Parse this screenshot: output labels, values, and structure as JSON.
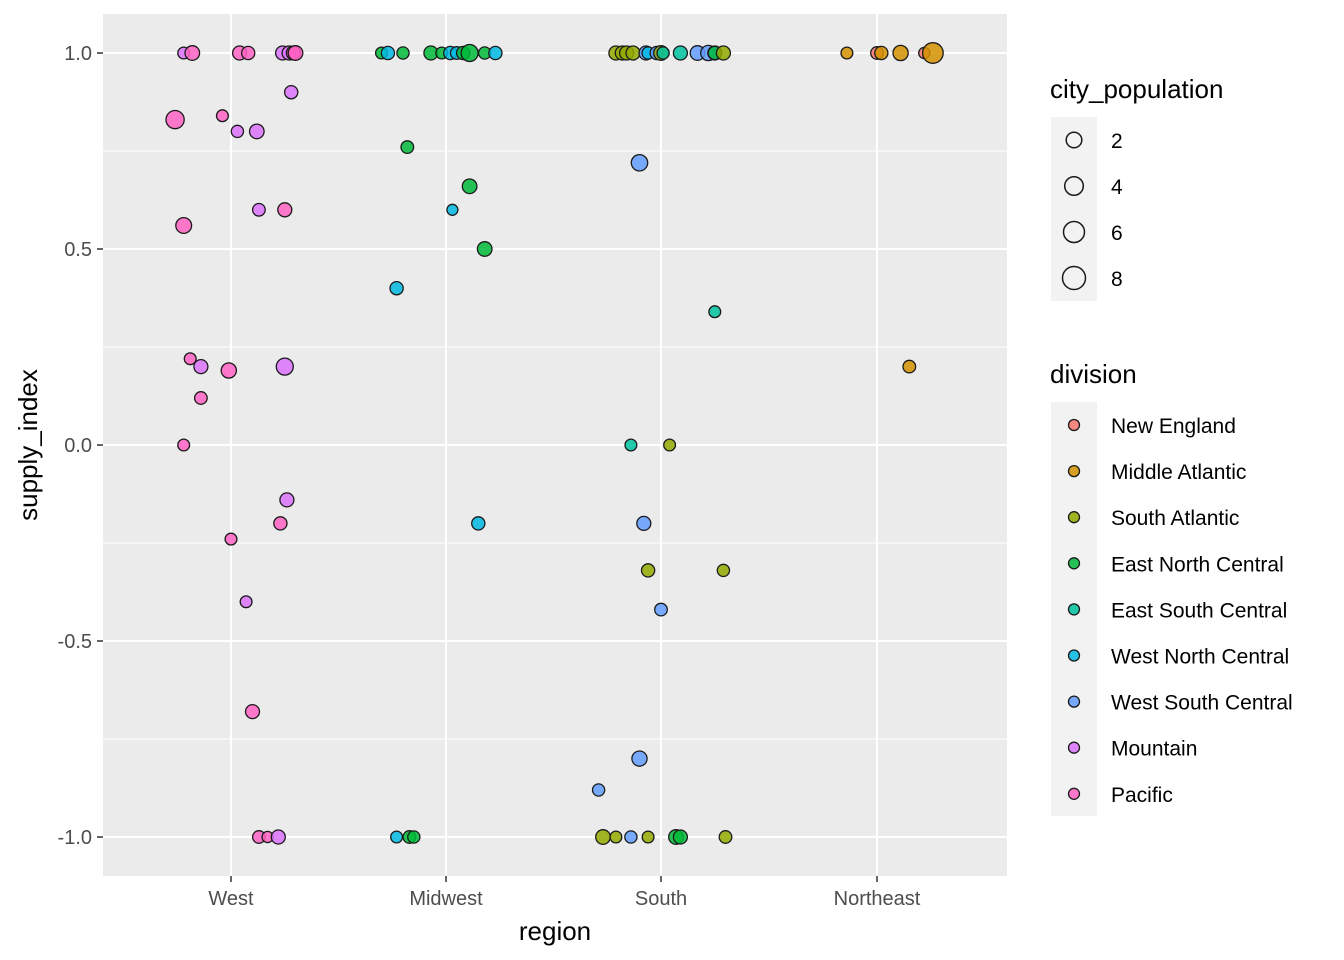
{
  "chart_data": {
    "type": "scatter",
    "title": "",
    "xlabel": "region",
    "ylabel": "supply_index",
    "categories": [
      "West",
      "Midwest",
      "South",
      "Northeast"
    ],
    "ylim": [
      -1.1,
      1.1
    ],
    "yticks": [
      1.0,
      0.5,
      0.0,
      -0.5,
      -1.0
    ],
    "ytick_labels": [
      "1.0",
      "0.5",
      "0.0",
      "-0.5",
      "-1.0"
    ],
    "grid": true,
    "legend_position": "right",
    "size_legend": {
      "title": "city_population",
      "values": [
        2,
        4,
        6,
        8
      ],
      "labels": [
        "2",
        "4",
        "6",
        "8"
      ]
    },
    "color_legend": {
      "title": "division",
      "items": [
        {
          "name": "New England",
          "color": "#F8766D"
        },
        {
          "name": "Middle Atlantic",
          "color": "#D39200"
        },
        {
          "name": "South Atlantic",
          "color": "#93AA00"
        },
        {
          "name": "East North Central",
          "color": "#00BA38"
        },
        {
          "name": "East South Central",
          "color": "#00C19F"
        },
        {
          "name": "West North Central",
          "color": "#00B9E3"
        },
        {
          "name": "West South Central",
          "color": "#619CFF"
        },
        {
          "name": "Mountain",
          "color": "#DB72FB"
        },
        {
          "name": "Pacific",
          "color": "#FF61C3"
        }
      ]
    },
    "points": [
      {
        "region": "West",
        "jitter": -0.22,
        "y": 1.0,
        "size": 0.8,
        "division": "Mountain"
      },
      {
        "region": "West",
        "jitter": -0.18,
        "y": 1.0,
        "size": 2.5,
        "division": "Pacific"
      },
      {
        "region": "West",
        "jitter": 0.04,
        "y": 1.0,
        "size": 2.0,
        "division": "Pacific"
      },
      {
        "region": "West",
        "jitter": 0.08,
        "y": 1.0,
        "size": 1.5,
        "division": "Pacific"
      },
      {
        "region": "West",
        "jitter": 0.24,
        "y": 1.0,
        "size": 2.0,
        "division": "Mountain"
      },
      {
        "region": "West",
        "jitter": 0.27,
        "y": 1.0,
        "size": 2.0,
        "division": "Mountain"
      },
      {
        "region": "West",
        "jitter": 0.29,
        "y": 1.0,
        "size": 2.0,
        "division": "Pacific"
      },
      {
        "region": "West",
        "jitter": 0.3,
        "y": 1.0,
        "size": 2.5,
        "division": "Pacific"
      },
      {
        "region": "West",
        "jitter": -0.26,
        "y": 0.83,
        "size": 6.0,
        "division": "Pacific"
      },
      {
        "region": "West",
        "jitter": -0.04,
        "y": 0.84,
        "size": 0.8,
        "division": "Pacific"
      },
      {
        "region": "West",
        "jitter": 0.03,
        "y": 0.8,
        "size": 1.0,
        "division": "Mountain"
      },
      {
        "region": "West",
        "jitter": 0.12,
        "y": 0.8,
        "size": 2.5,
        "division": "Mountain"
      },
      {
        "region": "West",
        "jitter": 0.28,
        "y": 0.9,
        "size": 1.5,
        "division": "Mountain"
      },
      {
        "region": "West",
        "jitter": -0.22,
        "y": 0.56,
        "size": 3.5,
        "division": "Pacific"
      },
      {
        "region": "West",
        "jitter": 0.13,
        "y": 0.6,
        "size": 1.2,
        "division": "Mountain"
      },
      {
        "region": "West",
        "jitter": 0.25,
        "y": 0.6,
        "size": 2.0,
        "division": "Pacific"
      },
      {
        "region": "West",
        "jitter": -0.19,
        "y": 0.22,
        "size": 0.8,
        "division": "Pacific"
      },
      {
        "region": "West",
        "jitter": -0.14,
        "y": 0.2,
        "size": 2.0,
        "division": "Mountain"
      },
      {
        "region": "West",
        "jitter": -0.01,
        "y": 0.19,
        "size": 3.0,
        "division": "Pacific"
      },
      {
        "region": "West",
        "jitter": 0.25,
        "y": 0.2,
        "size": 4.5,
        "division": "Mountain"
      },
      {
        "region": "West",
        "jitter": -0.14,
        "y": 0.12,
        "size": 1.2,
        "division": "Pacific"
      },
      {
        "region": "West",
        "jitter": -0.22,
        "y": 0.0,
        "size": 0.8,
        "division": "Pacific"
      },
      {
        "region": "West",
        "jitter": 0.26,
        "y": -0.14,
        "size": 2.0,
        "division": "Mountain"
      },
      {
        "region": "West",
        "jitter": 0.23,
        "y": -0.2,
        "size": 1.5,
        "division": "Pacific"
      },
      {
        "region": "West",
        "jitter": 0.0,
        "y": -0.24,
        "size": 0.8,
        "division": "Pacific"
      },
      {
        "region": "West",
        "jitter": 0.07,
        "y": -0.4,
        "size": 0.8,
        "division": "Mountain"
      },
      {
        "region": "West",
        "jitter": 0.1,
        "y": -0.68,
        "size": 2.0,
        "division": "Pacific"
      },
      {
        "region": "West",
        "jitter": 0.13,
        "y": -1.0,
        "size": 1.2,
        "division": "Pacific"
      },
      {
        "region": "West",
        "jitter": 0.17,
        "y": -1.0,
        "size": 0.6,
        "division": "Pacific"
      },
      {
        "region": "West",
        "jitter": 0.22,
        "y": -1.0,
        "size": 2.0,
        "division": "Mountain"
      },
      {
        "region": "Midwest",
        "jitter": -0.3,
        "y": 1.0,
        "size": 0.8,
        "division": "East North Central"
      },
      {
        "region": "Midwest",
        "jitter": -0.27,
        "y": 1.0,
        "size": 1.5,
        "division": "West North Central"
      },
      {
        "region": "Midwest",
        "jitter": -0.2,
        "y": 1.0,
        "size": 1.0,
        "division": "East North Central"
      },
      {
        "region": "Midwest",
        "jitter": -0.07,
        "y": 1.0,
        "size": 2.0,
        "division": "East North Central"
      },
      {
        "region": "Midwest",
        "jitter": -0.02,
        "y": 1.0,
        "size": 0.8,
        "division": "East North Central"
      },
      {
        "region": "Midwest",
        "jitter": 0.02,
        "y": 1.0,
        "size": 1.5,
        "division": "West North Central"
      },
      {
        "region": "Midwest",
        "jitter": 0.05,
        "y": 1.0,
        "size": 1.2,
        "division": "West North Central"
      },
      {
        "region": "Midwest",
        "jitter": 0.08,
        "y": 1.0,
        "size": 1.5,
        "division": "East North Central"
      },
      {
        "region": "Midwest",
        "jitter": 0.11,
        "y": 1.0,
        "size": 4.5,
        "division": "East North Central"
      },
      {
        "region": "Midwest",
        "jitter": 0.18,
        "y": 1.0,
        "size": 1.0,
        "division": "East North Central"
      },
      {
        "region": "Midwest",
        "jitter": 0.23,
        "y": 1.0,
        "size": 1.5,
        "division": "West North Central"
      },
      {
        "region": "Midwest",
        "jitter": -0.18,
        "y": 0.76,
        "size": 1.2,
        "division": "East North Central"
      },
      {
        "region": "Midwest",
        "jitter": 0.11,
        "y": 0.66,
        "size": 2.5,
        "division": "East North Central"
      },
      {
        "region": "Midwest",
        "jitter": 0.03,
        "y": 0.6,
        "size": 0.5,
        "division": "West North Central"
      },
      {
        "region": "Midwest",
        "jitter": 0.18,
        "y": 0.5,
        "size": 2.5,
        "division": "East North Central"
      },
      {
        "region": "Midwest",
        "jitter": -0.23,
        "y": 0.4,
        "size": 1.5,
        "division": "West North Central"
      },
      {
        "region": "Midwest",
        "jitter": 0.15,
        "y": -0.2,
        "size": 1.5,
        "division": "West North Central"
      },
      {
        "region": "Midwest",
        "jitter": -0.23,
        "y": -1.0,
        "size": 0.8,
        "division": "West North Central"
      },
      {
        "region": "Midwest",
        "jitter": -0.17,
        "y": -1.0,
        "size": 1.2,
        "division": "East North Central"
      },
      {
        "region": "Midwest",
        "jitter": -0.15,
        "y": -1.0,
        "size": 1.0,
        "division": "East North Central"
      },
      {
        "region": "South",
        "jitter": -0.21,
        "y": 1.0,
        "size": 2.0,
        "division": "South Atlantic"
      },
      {
        "region": "South",
        "jitter": -0.18,
        "y": 1.0,
        "size": 2.0,
        "division": "South Atlantic"
      },
      {
        "region": "South",
        "jitter": -0.16,
        "y": 1.0,
        "size": 2.0,
        "division": "South Atlantic"
      },
      {
        "region": "South",
        "jitter": -0.13,
        "y": 1.0,
        "size": 2.0,
        "division": "South Atlantic"
      },
      {
        "region": "South",
        "jitter": -0.07,
        "y": 1.0,
        "size": 2.0,
        "division": "West South Central"
      },
      {
        "region": "South",
        "jitter": -0.06,
        "y": 1.0,
        "size": 1.0,
        "division": "West North Central"
      },
      {
        "region": "South",
        "jitter": -0.02,
        "y": 1.0,
        "size": 1.5,
        "division": "West South Central"
      },
      {
        "region": "South",
        "jitter": 0.0,
        "y": 1.0,
        "size": 2.5,
        "division": "South Atlantic"
      },
      {
        "region": "South",
        "jitter": 0.01,
        "y": 1.0,
        "size": 1.0,
        "division": "East South Central"
      },
      {
        "region": "South",
        "jitter": 0.09,
        "y": 1.0,
        "size": 2.0,
        "division": "East South Central"
      },
      {
        "region": "South",
        "jitter": 0.17,
        "y": 1.0,
        "size": 2.5,
        "division": "West South Central"
      },
      {
        "region": "South",
        "jitter": 0.22,
        "y": 1.0,
        "size": 3.0,
        "division": "West South Central"
      },
      {
        "region": "South",
        "jitter": 0.25,
        "y": 1.0,
        "size": 2.0,
        "division": "West South Central"
      },
      {
        "region": "South",
        "jitter": 0.25,
        "y": 1.0,
        "size": 1.5,
        "division": "East North Central"
      },
      {
        "region": "South",
        "jitter": 0.29,
        "y": 1.0,
        "size": 2.0,
        "division": "South Atlantic"
      },
      {
        "region": "South",
        "jitter": -0.1,
        "y": 0.72,
        "size": 4.0,
        "division": "West South Central"
      },
      {
        "region": "South",
        "jitter": 0.25,
        "y": 0.34,
        "size": 0.8,
        "division": "East South Central"
      },
      {
        "region": "South",
        "jitter": -0.14,
        "y": 0.0,
        "size": 0.8,
        "division": "East South Central"
      },
      {
        "region": "South",
        "jitter": 0.04,
        "y": 0.0,
        "size": 0.8,
        "division": "South Atlantic"
      },
      {
        "region": "South",
        "jitter": -0.08,
        "y": -0.2,
        "size": 2.0,
        "division": "West South Central"
      },
      {
        "region": "South",
        "jitter": -0.06,
        "y": -0.32,
        "size": 1.5,
        "division": "South Atlantic"
      },
      {
        "region": "South",
        "jitter": 0.29,
        "y": -0.32,
        "size": 1.0,
        "division": "South Atlantic"
      },
      {
        "region": "South",
        "jitter": 0.0,
        "y": -0.42,
        "size": 1.2,
        "division": "West South Central"
      },
      {
        "region": "South",
        "jitter": -0.1,
        "y": -0.8,
        "size": 3.0,
        "division": "West South Central"
      },
      {
        "region": "South",
        "jitter": -0.29,
        "y": -0.88,
        "size": 1.0,
        "division": "West South Central"
      },
      {
        "region": "South",
        "jitter": -0.27,
        "y": -1.0,
        "size": 2.5,
        "division": "South Atlantic"
      },
      {
        "region": "South",
        "jitter": -0.21,
        "y": -1.0,
        "size": 0.8,
        "division": "South Atlantic"
      },
      {
        "region": "South",
        "jitter": -0.14,
        "y": -1.0,
        "size": 1.0,
        "division": "West South Central"
      },
      {
        "region": "South",
        "jitter": -0.06,
        "y": -1.0,
        "size": 0.8,
        "division": "South Atlantic"
      },
      {
        "region": "South",
        "jitter": 0.07,
        "y": -1.0,
        "size": 2.5,
        "division": "East North Central"
      },
      {
        "region": "South",
        "jitter": 0.09,
        "y": -1.0,
        "size": 2.0,
        "division": "East North Central"
      },
      {
        "region": "South",
        "jitter": 0.3,
        "y": -1.0,
        "size": 1.2,
        "division": "South Atlantic"
      },
      {
        "region": "Northeast",
        "jitter": -0.14,
        "y": 1.0,
        "size": 0.8,
        "division": "Middle Atlantic"
      },
      {
        "region": "Northeast",
        "jitter": 0.0,
        "y": 1.0,
        "size": 1.2,
        "division": "New England"
      },
      {
        "region": "Northeast",
        "jitter": 0.02,
        "y": 1.0,
        "size": 1.5,
        "division": "Middle Atlantic"
      },
      {
        "region": "Northeast",
        "jitter": 0.11,
        "y": 1.0,
        "size": 3.0,
        "division": "Middle Atlantic"
      },
      {
        "region": "Northeast",
        "jitter": 0.22,
        "y": 1.0,
        "size": 0.6,
        "division": "New England"
      },
      {
        "region": "Northeast",
        "jitter": 0.26,
        "y": 1.0,
        "size": 9.0,
        "division": "Middle Atlantic"
      },
      {
        "region": "Northeast",
        "jitter": 0.15,
        "y": 0.2,
        "size": 1.2,
        "division": "Middle Atlantic"
      }
    ]
  }
}
